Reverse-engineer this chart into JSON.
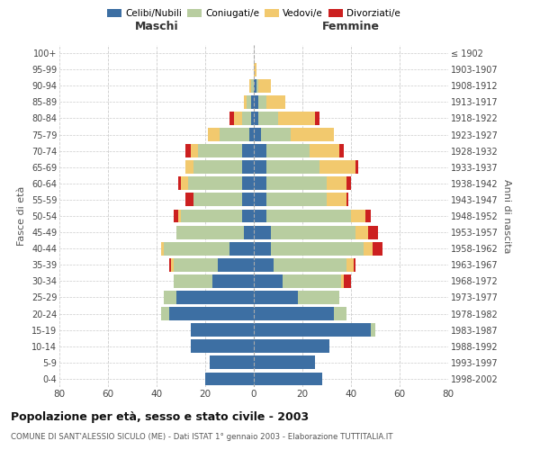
{
  "age_groups_bottom_to_top": [
    "0-4",
    "5-9",
    "10-14",
    "15-19",
    "20-24",
    "25-29",
    "30-34",
    "35-39",
    "40-44",
    "45-49",
    "50-54",
    "55-59",
    "60-64",
    "65-69",
    "70-74",
    "75-79",
    "80-84",
    "85-89",
    "90-94",
    "95-99",
    "100+"
  ],
  "birth_years_bottom_to_top": [
    "1998-2002",
    "1993-1997",
    "1988-1992",
    "1983-1987",
    "1978-1982",
    "1973-1977",
    "1968-1972",
    "1963-1967",
    "1958-1962",
    "1953-1957",
    "1948-1952",
    "1943-1947",
    "1938-1942",
    "1933-1937",
    "1928-1932",
    "1923-1927",
    "1918-1922",
    "1913-1917",
    "1908-1912",
    "1903-1907",
    "≤ 1902"
  ],
  "colors": {
    "celibi": "#3d6fa3",
    "coniugati": "#b8cda0",
    "vedovi": "#f2c96e",
    "divorziati": "#cc2020"
  },
  "male": {
    "celibi": [
      20,
      18,
      26,
      26,
      35,
      32,
      17,
      15,
      10,
      4,
      5,
      5,
      5,
      5,
      5,
      2,
      1,
      1,
      0,
      0,
      0
    ],
    "coniugati": [
      0,
      0,
      0,
      0,
      3,
      5,
      16,
      18,
      27,
      28,
      25,
      20,
      22,
      20,
      18,
      12,
      4,
      2,
      1,
      0,
      0
    ],
    "vedovi": [
      0,
      0,
      0,
      0,
      0,
      0,
      0,
      1,
      1,
      0,
      1,
      0,
      3,
      3,
      3,
      5,
      3,
      1,
      1,
      0,
      0
    ],
    "divorziati": [
      0,
      0,
      0,
      0,
      0,
      0,
      0,
      1,
      0,
      0,
      2,
      3,
      1,
      0,
      2,
      0,
      2,
      0,
      0,
      0,
      0
    ]
  },
  "female": {
    "celibi": [
      28,
      25,
      31,
      48,
      33,
      18,
      12,
      8,
      7,
      7,
      5,
      5,
      5,
      5,
      5,
      3,
      2,
      2,
      1,
      0,
      0
    ],
    "coniugati": [
      0,
      0,
      0,
      2,
      5,
      17,
      24,
      30,
      38,
      35,
      35,
      25,
      25,
      22,
      18,
      12,
      8,
      3,
      1,
      0,
      0
    ],
    "vedovi": [
      0,
      0,
      0,
      0,
      0,
      0,
      1,
      3,
      4,
      5,
      6,
      8,
      8,
      15,
      12,
      18,
      15,
      8,
      5,
      1,
      0
    ],
    "divorziati": [
      0,
      0,
      0,
      0,
      0,
      0,
      3,
      1,
      4,
      4,
      2,
      1,
      2,
      1,
      2,
      0,
      2,
      0,
      0,
      0,
      0
    ]
  },
  "xlim": 80,
  "title": "Popolazione per età, sesso e stato civile - 2003",
  "subtitle": "COMUNE DI SANT'ALESSIO SICULO (ME) - Dati ISTAT 1° gennaio 2003 - Elaborazione TUTTITALIA.IT",
  "ylabel": "Fasce di età",
  "ylabel_right": "Anni di nascita",
  "xlabel_left": "Maschi",
  "xlabel_right": "Femmine",
  "legend_labels": [
    "Celibi/Nubili",
    "Coniugati/e",
    "Vedovi/e",
    "Divorziati/e"
  ],
  "background_color": "#ffffff",
  "grid_color": "#cccccc"
}
